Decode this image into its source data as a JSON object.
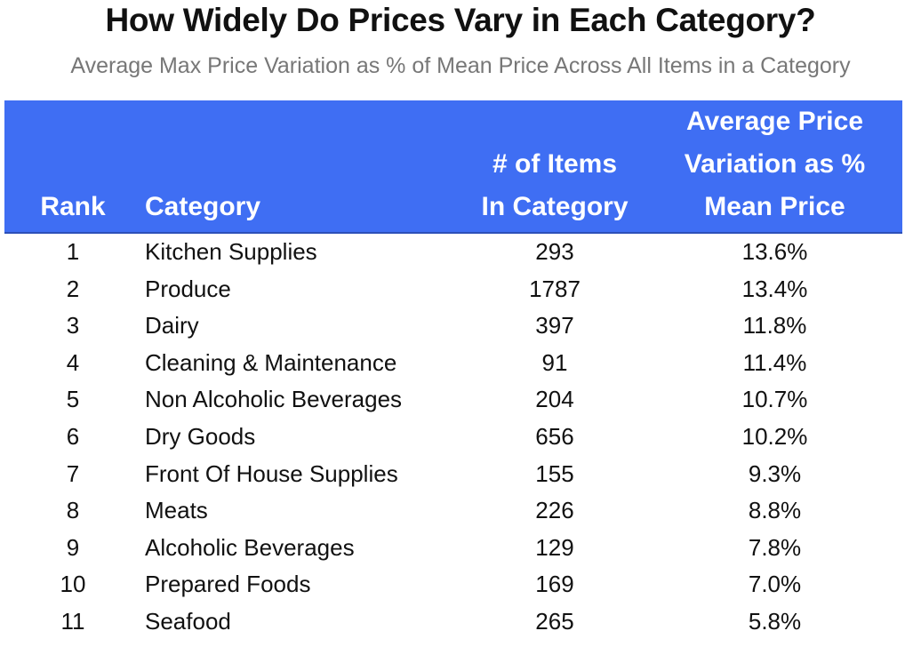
{
  "title": "How Widely Do Prices Vary in Each Category?",
  "subtitle": "Average Max Price Variation as % of Mean Price Across All Items in a Category",
  "table": {
    "columns": [
      "Rank",
      "Category",
      "# of Items In Category",
      "Average Price Variation as % Mean Price"
    ],
    "rows": [
      [
        "1",
        "Kitchen Supplies",
        "293",
        "13.6%"
      ],
      [
        "2",
        "Produce",
        "1787",
        "13.4%"
      ],
      [
        "3",
        "Dairy",
        "397",
        "11.8%"
      ],
      [
        "4",
        "Cleaning & Maintenance",
        "91",
        "11.4%"
      ],
      [
        "5",
        "Non Alcoholic Beverages",
        "204",
        "10.7%"
      ],
      [
        "6",
        "Dry Goods",
        "656",
        "10.2%"
      ],
      [
        "7",
        "Front Of House Supplies",
        "155",
        "9.3%"
      ],
      [
        "8",
        "Meats",
        "226",
        "8.8%"
      ],
      [
        "9",
        "Alcoholic Beverages",
        "129",
        "7.8%"
      ],
      [
        "10",
        "Prepared Foods",
        "169",
        "7.0%"
      ],
      [
        "11",
        "Seafood",
        "265",
        "5.8%"
      ]
    ]
  }
}
